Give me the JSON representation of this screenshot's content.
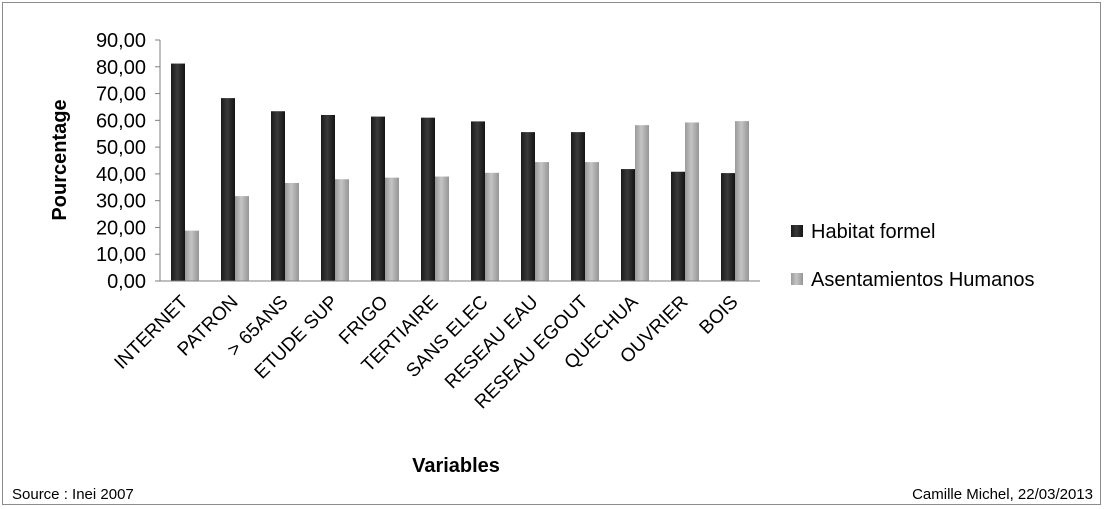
{
  "chart_data": {
    "type": "bar",
    "categories": [
      "INTERNET",
      "PATRON",
      "> 65ANS",
      "ETUDE SUP",
      "FRIGO",
      "TERTIAIRE",
      "SANS ELEC",
      "RESEAU EAU",
      "RESEAU EGOUT",
      "QUECHUA",
      "OUVRIER",
      "BOIS"
    ],
    "series": [
      {
        "name": "Habitat formel",
        "color": "#252525",
        "values": [
          81.2,
          68.3,
          63.4,
          62.0,
          61.4,
          61.0,
          59.6,
          55.6,
          55.6,
          41.8,
          40.8,
          40.3
        ]
      },
      {
        "name": "Asentamientos Humanos",
        "color": "#a8a8a8",
        "values": [
          18.8,
          31.7,
          36.6,
          38.0,
          38.6,
          39.0,
          40.4,
          44.4,
          44.4,
          58.2,
          59.2,
          59.7
        ]
      }
    ],
    "ylabel": "Pourcentage",
    "xlabel": "Variables",
    "ylim": [
      0,
      90
    ],
    "yticks": [
      "0,00",
      "10,00",
      "20,00",
      "30,00",
      "40,00",
      "50,00",
      "60,00",
      "70,00",
      "80,00",
      "90,00"
    ],
    "legend_position": "right",
    "grid": false
  },
  "footer": {
    "source": "Source : Inei 2007",
    "credit": "Camille Michel, 22/03/2013"
  }
}
